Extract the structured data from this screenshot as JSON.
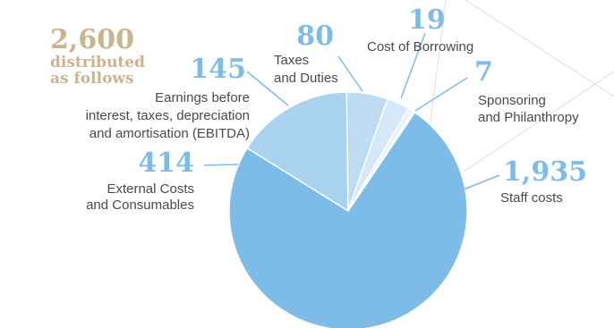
{
  "header": {
    "total": "2,600",
    "subtitle_line1": "distributed",
    "subtitle_line2": "as follows"
  },
  "colors": {
    "accent": "#7dbce8",
    "total_gold": "#c9b48f",
    "slices": [
      "#7dbce8",
      "#a9d2ef",
      "#bddcf3",
      "#d4e8f7",
      "#e6f1fa",
      "#f1f7fc"
    ]
  },
  "labels": {
    "staff": {
      "value": "1,935",
      "line1": "Staff costs"
    },
    "external": {
      "value": "414",
      "line1": "External Costs",
      "line2": "and Consumables"
    },
    "ebitda": {
      "value": "145",
      "line1": "Earnings before",
      "line2": "interest, taxes, depreciation",
      "line3": "and amortisation (EBITDA)"
    },
    "taxes": {
      "value": "80",
      "line1": "Taxes",
      "line2": "and Duties"
    },
    "borrowing": {
      "value": "19",
      "line1": "Cost of Borrowing"
    },
    "sponsoring": {
      "value": "7",
      "line1": "Sponsoring",
      "line2": "and Philanthropy"
    }
  },
  "chart_data": {
    "type": "pie",
    "total": 2600,
    "slices": [
      {
        "name": "Staff costs",
        "value": 1935
      },
      {
        "name": "External Costs and Consumables",
        "value": 414
      },
      {
        "name": "Earnings before interest, taxes, depreciation and amortisation (EBITDA)",
        "value": 145
      },
      {
        "name": "Taxes and Duties",
        "value": 80
      },
      {
        "name": "Cost of Borrowing",
        "value": 19
      },
      {
        "name": "Sponsoring and Philanthropy",
        "value": 7
      }
    ]
  }
}
